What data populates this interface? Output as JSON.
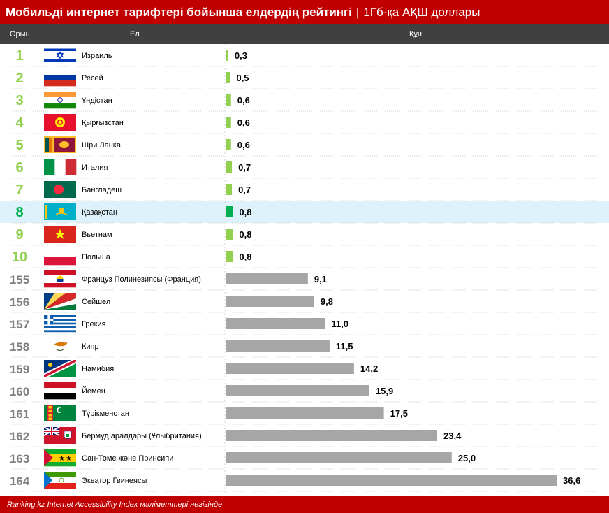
{
  "title": "Мобильді интернет тарифтері бойынша елдердің рейтингі",
  "title_separator": "|",
  "subtitle": "1Гб-қа АҚШ доллары",
  "header": {
    "rank": "Орын",
    "country": "Ел",
    "value": "Құн"
  },
  "footer": "Ranking.kz Internet Accessibility Index мәліметтері негізінде",
  "colors": {
    "brand_red": "#c00000",
    "header_dark": "#404040",
    "top_green": "#92d050",
    "kz_green": "#00b050",
    "rank_gray": "#7f7f7f",
    "bar_gray": "#a6a6a6",
    "highlight": "#ddf2fb"
  },
  "chart_data": {
    "type": "bar",
    "orientation": "horizontal",
    "title": "Мобильді интернет тарифтері бойынша елдердің рейтингі",
    "subtitle": "1Гб-қа АҚШ доллары",
    "xlabel": "Құн",
    "ylabel": "Ел",
    "xlim": [
      0,
      36.6
    ],
    "highlight": "Қазақстан",
    "rows": [
      {
        "rank": "1",
        "country": "Израиль",
        "value": 0.3,
        "label": "0,3",
        "flag": "israel-flag"
      },
      {
        "rank": "2",
        "country": "Ресей",
        "value": 0.5,
        "label": "0,5",
        "flag": "russia-flag"
      },
      {
        "rank": "3",
        "country": "Үндістан",
        "value": 0.6,
        "label": "0,6",
        "flag": "india-flag"
      },
      {
        "rank": "4",
        "country": "Қырғызстан",
        "value": 0.6,
        "label": "0,6",
        "flag": "kyrgyzstan-flag"
      },
      {
        "rank": "5",
        "country": "Шри Ланка",
        "value": 0.6,
        "label": "0,6",
        "flag": "sri-lanka-flag"
      },
      {
        "rank": "6",
        "country": "Италия",
        "value": 0.7,
        "label": "0,7",
        "flag": "italy-flag"
      },
      {
        "rank": "7",
        "country": "Бангладеш",
        "value": 0.7,
        "label": "0,7",
        "flag": "bangladesh-flag"
      },
      {
        "rank": "8",
        "country": "Қазақстан",
        "value": 0.8,
        "label": "0,8",
        "flag": "kazakhstan-flag"
      },
      {
        "rank": "9",
        "country": "Вьетнам",
        "value": 0.8,
        "label": "0,8",
        "flag": "vietnam-flag"
      },
      {
        "rank": "10",
        "country": "Польша",
        "value": 0.8,
        "label": "0,8",
        "flag": "poland-flag"
      },
      {
        "rank": "155",
        "country": "Француз Полинезиясы (Франция)",
        "value": 9.1,
        "label": "9,1",
        "flag": "french-polynesia-flag"
      },
      {
        "rank": "156",
        "country": "Сейшел",
        "value": 9.8,
        "label": "9,8",
        "flag": "seychelles-flag"
      },
      {
        "rank": "157",
        "country": "Грекия",
        "value": 11.0,
        "label": "11,0",
        "flag": "greece-flag"
      },
      {
        "rank": "158",
        "country": "Кипр",
        "value": 11.5,
        "label": "11,5",
        "flag": "cyprus-flag"
      },
      {
        "rank": "159",
        "country": "Намибия",
        "value": 14.2,
        "label": "14,2",
        "flag": "namibia-flag"
      },
      {
        "rank": "160",
        "country": "Йемен",
        "value": 15.9,
        "label": "15,9",
        "flag": "yemen-flag"
      },
      {
        "rank": "161",
        "country": "Түрікменстан",
        "value": 17.5,
        "label": "17,5",
        "flag": "turkmenistan-flag"
      },
      {
        "rank": "162",
        "country": "Бермуд аралдары (Ұлыбритания)",
        "value": 23.4,
        "label": "23,4",
        "flag": "bermuda-flag"
      },
      {
        "rank": "163",
        "country": "Сан-Томе және Принсипи",
        "value": 25.0,
        "label": "25,0",
        "flag": "sao-tome-flag"
      },
      {
        "rank": "164",
        "country": "Экватор Гвинеясы",
        "value": 36.6,
        "label": "36,6",
        "flag": "equatorial-guinea-flag"
      }
    ]
  }
}
